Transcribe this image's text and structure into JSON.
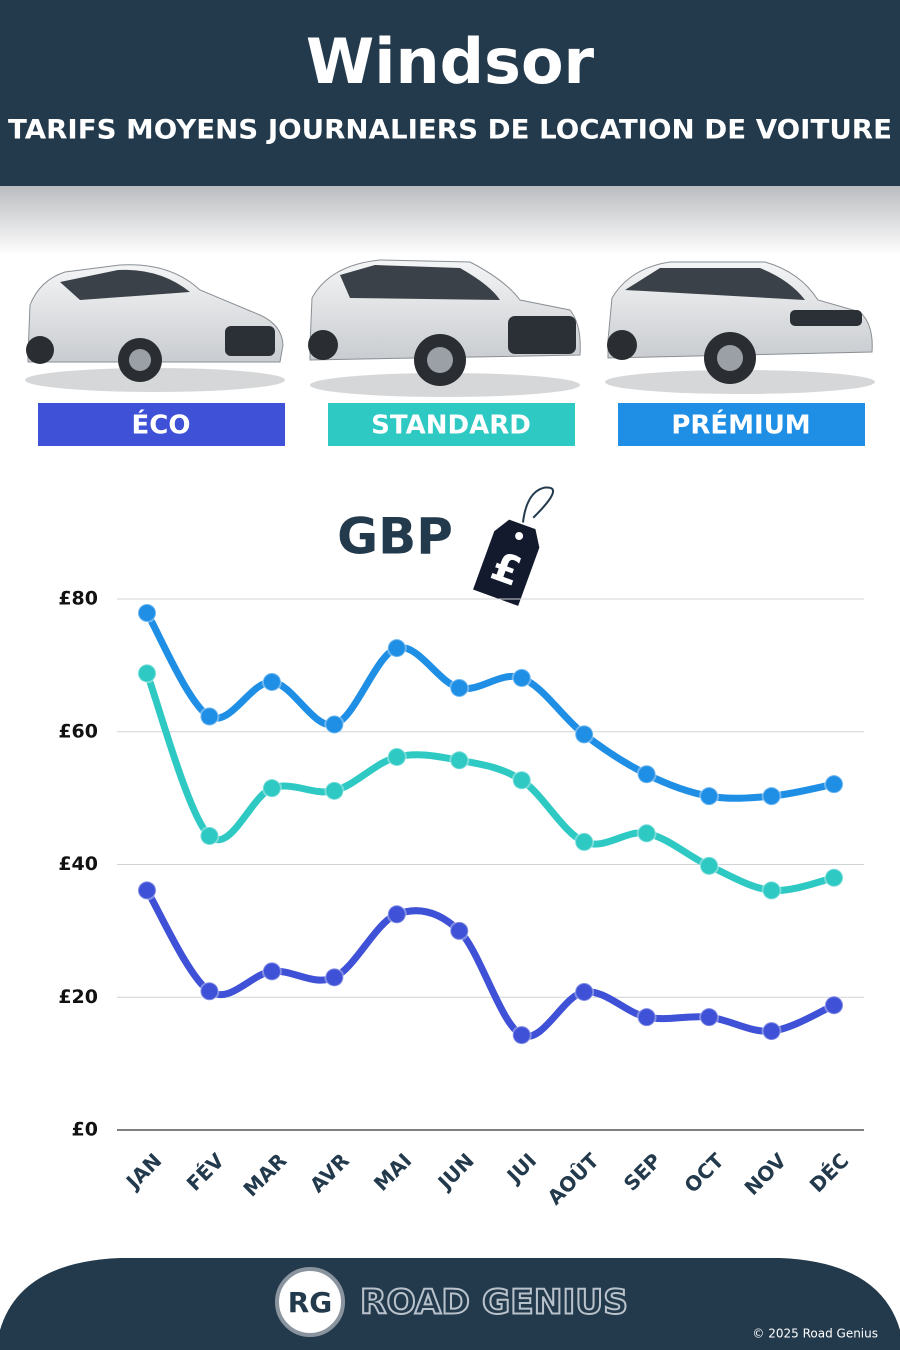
{
  "header": {
    "title": "Windsor",
    "subtitle": "TARIFS MOYENS JOURNALIERS DE LOCATION DE VOITURE"
  },
  "chart_data": {
    "type": "line",
    "unit_label": "GBP",
    "currency_symbol": "£",
    "categories": [
      "JAN",
      "FÉV",
      "MAR",
      "AVR",
      "MAI",
      "JUN",
      "JUI",
      "AOÛT",
      "SEP",
      "OCT",
      "NOV",
      "DÉC"
    ],
    "series": [
      {
        "name": "ÉCO",
        "color": "#3f51d6",
        "values": [
          36.1,
          20.9,
          23.9,
          23.0,
          32.5,
          30.0,
          14.3,
          20.8,
          17.0,
          17.0,
          14.9,
          18.8
        ]
      },
      {
        "name": "STANDARD",
        "color": "#2ec9c3",
        "values": [
          68.8,
          44.3,
          51.5,
          51.1,
          56.2,
          55.7,
          52.7,
          43.4,
          44.7,
          39.8,
          36.1,
          38.0
        ]
      },
      {
        "name": "PRÉMIUM",
        "color": "#1f8fe6",
        "values": [
          77.9,
          62.3,
          67.5,
          61.1,
          72.6,
          66.6,
          68.1,
          59.6,
          53.6,
          50.3,
          50.3,
          52.1
        ]
      }
    ],
    "ylim": [
      0,
      80
    ],
    "yticks": [
      {
        "value": 0,
        "label": "£0"
      },
      {
        "value": 20,
        "label": "£20"
      },
      {
        "value": 40,
        "label": "£40"
      },
      {
        "value": 60,
        "label": "£60"
      },
      {
        "value": 80,
        "label": "£80"
      }
    ],
    "grid": true
  },
  "footer": {
    "logo": "RG",
    "brand": "ROAD GENIUS",
    "copyright": "© 2025 Road Genius"
  }
}
